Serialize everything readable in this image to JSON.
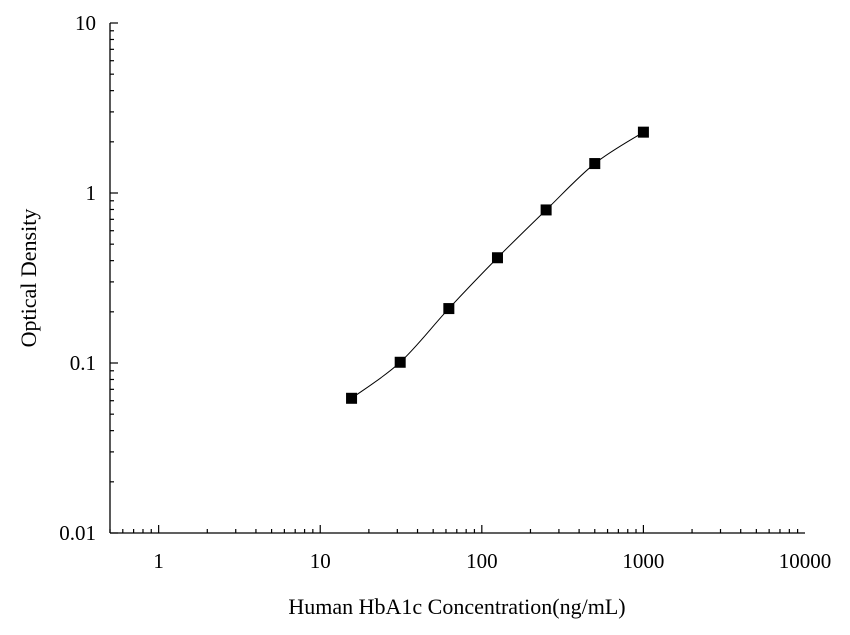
{
  "chart_data": {
    "type": "scatter",
    "title": "",
    "xlabel": "Human HbA1c Concentration(ng/mL)",
    "ylabel": "Optical Density",
    "xscale": "log",
    "yscale": "log",
    "xlim": [
      0.5,
      10000
    ],
    "ylim": [
      0.01,
      10
    ],
    "xticks": [
      {
        "value": 1,
        "label": "1"
      },
      {
        "value": 10,
        "label": "10"
      },
      {
        "value": 100,
        "label": "100"
      },
      {
        "value": 1000,
        "label": "1000"
      },
      {
        "value": 10000,
        "label": "10000"
      }
    ],
    "yticks": [
      {
        "value": 0.01,
        "label": "0.01"
      },
      {
        "value": 0.1,
        "label": "0.1"
      },
      {
        "value": 1,
        "label": "1"
      },
      {
        "value": 10,
        "label": "10"
      }
    ],
    "series": [
      {
        "x": [
          15.625,
          31.25,
          62.5,
          125,
          250,
          500,
          1000
        ],
        "y": [
          0.062,
          0.101,
          0.209,
          0.416,
          0.795,
          1.49,
          2.28
        ],
        "marker": "square",
        "line": "smooth"
      }
    ],
    "grid": false,
    "legend": "none",
    "colors": {
      "marker": "#000000",
      "line": "#000000",
      "axis": "#000000"
    }
  }
}
